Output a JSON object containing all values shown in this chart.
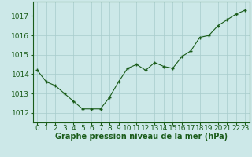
{
  "x": [
    0,
    1,
    2,
    3,
    4,
    5,
    6,
    7,
    8,
    9,
    10,
    11,
    12,
    13,
    14,
    15,
    16,
    17,
    18,
    19,
    20,
    21,
    22,
    23
  ],
  "y": [
    1014.2,
    1013.6,
    1013.4,
    1013.0,
    1012.6,
    1012.2,
    1012.2,
    1012.2,
    1012.8,
    1013.6,
    1014.3,
    1014.5,
    1014.2,
    1014.6,
    1014.4,
    1014.3,
    1014.9,
    1015.2,
    1015.9,
    1016.0,
    1016.5,
    1016.8,
    1017.1,
    1017.3
  ],
  "line_color": "#1a5c1a",
  "marker_color": "#1a5c1a",
  "bg_color": "#cce8e8",
  "grid_color": "#a8cccc",
  "xlabel": "Graphe pression niveau de la mer (hPa)",
  "xlabel_color": "#1a5c1a",
  "tick_color": "#1a5c1a",
  "ylim": [
    1011.5,
    1017.75
  ],
  "xlim": [
    -0.5,
    23.5
  ],
  "yticks": [
    1012,
    1013,
    1014,
    1015,
    1016,
    1017
  ],
  "xtick_labels": [
    "0",
    "1",
    "2",
    "3",
    "4",
    "5",
    "6",
    "7",
    "8",
    "9",
    "10",
    "11",
    "12",
    "13",
    "14",
    "15",
    "16",
    "17",
    "18",
    "19",
    "20",
    "21",
    "22",
    "23"
  ],
  "axis_fontsize": 6.5,
  "label_fontsize": 7.0
}
